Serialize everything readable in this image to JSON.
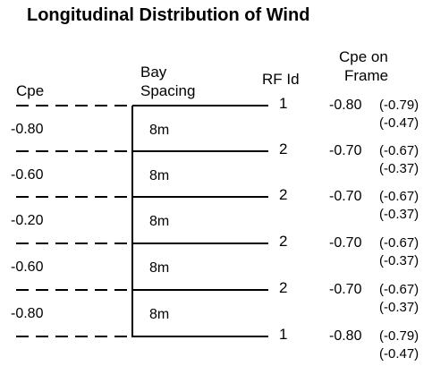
{
  "title": "Longitudinal Distribution of Wind",
  "headers": {
    "cpe": "Cpe",
    "bay_spacing_line1": "Bay",
    "bay_spacing_line2": "Spacing",
    "rf_id": "RF Id",
    "cpe_frame_line1": "Cpe on",
    "cpe_frame_line2": "Frame"
  },
  "bays": [
    {
      "cpe": "-0.80",
      "spacing": "8m"
    },
    {
      "cpe": "-0.60",
      "spacing": "8m"
    },
    {
      "cpe": "-0.20",
      "spacing": "8m"
    },
    {
      "cpe": "-0.60",
      "spacing": "8m"
    },
    {
      "cpe": "-0.80",
      "spacing": "8m"
    }
  ],
  "frames": [
    {
      "rf_id": "1",
      "cpe": "-0.80",
      "max": "(-0.79)",
      "min": "(-0.47)"
    },
    {
      "rf_id": "2",
      "cpe": "-0.70",
      "max": "(-0.67)",
      "min": "(-0.37)"
    },
    {
      "rf_id": "2",
      "cpe": "-0.70",
      "max": "(-0.67)",
      "min": "(-0.37)"
    },
    {
      "rf_id": "2",
      "cpe": "-0.70",
      "max": "(-0.67)",
      "min": "(-0.37)"
    },
    {
      "rf_id": "2",
      "cpe": "-0.70",
      "max": "(-0.67)",
      "min": "(-0.37)"
    },
    {
      "rf_id": "1",
      "cpe": "-0.80",
      "max": "(-0.79)",
      "min": "(-0.47)"
    }
  ]
}
